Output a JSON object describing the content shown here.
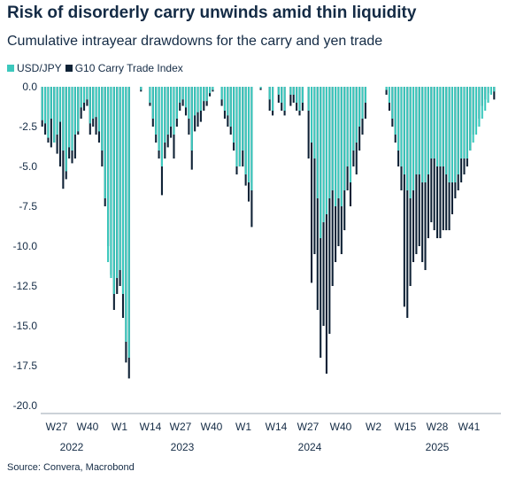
{
  "title": "Risk of disorderly carry unwinds amid thin liquidity",
  "subtitle": "Cumulative intrayear drawdowns for the carry and yen trade",
  "source": "Source: Convera, Macrobond",
  "colors": {
    "usdjpy": "#3cc8bd",
    "g10": "#0f2236"
  },
  "chart_data": {
    "type": "bar",
    "ylim": [
      -20,
      0
    ],
    "yticks": [
      "0.0",
      "-2.5",
      "-5.0",
      "-7.5",
      "-10.0",
      "-12.5",
      "-15.0",
      "-17.5",
      "-20.0"
    ],
    "x_tick_labels": [
      "W27",
      "W40",
      "W1",
      "W14",
      "W27",
      "W40",
      "W1",
      "W14",
      "W27",
      "W40",
      "W2",
      "W15",
      "W28",
      "W41"
    ],
    "x_group_labels": [
      "2022",
      "2023",
      "2024",
      "2025"
    ],
    "series": [
      {
        "name": "USD/JPY",
        "values": [
          -2.1,
          -2.3,
          -3.2,
          -2.0,
          -3.5,
          -3.0,
          -2.2,
          -4.0,
          -5.3,
          -3.8,
          -4.0,
          -3.0,
          -2.8,
          -1.3,
          -1.0,
          -0.8,
          -2.3,
          -2.0,
          -1.9,
          -2.8,
          -4.0,
          -7.0,
          -11.0,
          -12.0,
          -13.0,
          -12.0,
          -11.5,
          -13.0,
          -16.0,
          -17.0,
          0.0,
          0.0,
          0.0,
          -0.2,
          0.0,
          0.0,
          -1.0,
          -2.0,
          -3.0,
          -4.0,
          -5.0,
          -3.5,
          -3.0,
          -2.5,
          -3.0,
          -2.0,
          -1.0,
          -0.8,
          -1.3,
          -2.0,
          -4.0,
          -1.8,
          -1.6,
          -1.5,
          -0.9,
          -0.9,
          -0.4,
          -0.2,
          0.0,
          0.0,
          -0.8,
          -1.5,
          -1.8,
          -2.5,
          -3.5,
          -5.0,
          -5.0,
          -4.0,
          -5.5,
          -6.0,
          -6.5,
          0.0,
          0.0,
          -0.1,
          0.0,
          0.0,
          -0.8,
          -1.5,
          0.0,
          -0.5,
          -1.0,
          -1.5,
          0.0,
          -0.5,
          -0.5,
          -1.0,
          -1.5,
          -1.0,
          0.0,
          -1.5,
          -3.5,
          -4.5,
          -7.0,
          -9.5,
          -8.5,
          -8.0,
          -7.0,
          -6.5,
          -7.5,
          -7.0,
          -7.5,
          -6.5,
          -5.0,
          -6.0,
          -4.0,
          -3.5,
          -2.5,
          -2.0,
          -1.0,
          0.0,
          0.0,
          0.0,
          0.0,
          0.0,
          0.0,
          -0.2,
          -1.0,
          -2.0,
          -3.0,
          -4.0,
          -5.0,
          -5.5,
          -6.5,
          -7.0,
          -6.5,
          -5.5,
          -5.5,
          -6.0,
          -6.0,
          -5.5,
          -4.5,
          -4.5,
          -5.0,
          -5.0,
          -5.0,
          -5.5,
          -6.0,
          -6.0,
          -6.0,
          -5.5,
          -4.5,
          -4.5,
          -4.5,
          -4.0,
          -3.5,
          -3.0,
          -2.5,
          -2.0,
          -1.5,
          -1.0,
          -0.5,
          -0.3,
          0.0,
          -0.5
        ]
      },
      {
        "name": "G10 Carry Trade Index",
        "values": [
          -2.5,
          -3.0,
          -3.5,
          -3.8,
          -3.5,
          -4.2,
          -5.0,
          -6.4,
          -5.8,
          -4.5,
          -4.8,
          -4.5,
          -3.0,
          -2.0,
          -1.5,
          -1.2,
          -3.0,
          -2.5,
          -3.0,
          -3.5,
          -5.0,
          -7.5,
          -10.0,
          -11.8,
          -14.0,
          -13.0,
          -12.5,
          -14.5,
          -17.3,
          -18.3,
          0.0,
          0.0,
          0.0,
          -0.3,
          0.0,
          0.0,
          -1.2,
          -2.5,
          -3.5,
          -4.5,
          -6.8,
          -4.5,
          -3.8,
          -3.2,
          -4.5,
          -2.5,
          -1.5,
          -1.2,
          -1.8,
          -3.0,
          -5.2,
          -2.8,
          -2.5,
          -2.2,
          -1.5,
          -1.2,
          -0.6,
          -0.3,
          0.0,
          0.0,
          -1.2,
          -2.0,
          -2.5,
          -3.0,
          -4.0,
          -5.5,
          -5.0,
          -5.0,
          -6.2,
          -7.2,
          -8.8,
          0.0,
          0.0,
          -0.2,
          0.0,
          0.0,
          -1.5,
          -1.8,
          0.0,
          -1.0,
          -1.5,
          -1.8,
          0.0,
          -1.2,
          -1.0,
          -1.5,
          -1.8,
          -1.5,
          0.0,
          -4.5,
          -12.3,
          -10.5,
          -14.0,
          -17.0,
          -15.0,
          -18.0,
          -15.5,
          -12.5,
          -11.0,
          -10.0,
          -10.5,
          -9.0,
          -6.5,
          -7.5,
          -5.0,
          -5.5,
          -4.0,
          -3.0,
          -2.0,
          0.0,
          0.0,
          0.0,
          0.0,
          0.0,
          0.0,
          -0.5,
          -1.5,
          -2.5,
          -3.5,
          -5.0,
          -6.5,
          -13.8,
          -14.5,
          -12.5,
          -11.0,
          -10.5,
          -10.0,
          -11.0,
          -11.5,
          -9.5,
          -8.5,
          -9.0,
          -9.5,
          -9.5,
          -9.0,
          -9.0,
          -9.0,
          -8.0,
          -7.0,
          -6.5,
          -6.0,
          -5.5,
          -5.0,
          -4.0,
          -3.0,
          -2.5,
          -2.0,
          -1.2,
          -0.8,
          -0.4,
          0.0,
          -0.8
        ]
      }
    ]
  }
}
